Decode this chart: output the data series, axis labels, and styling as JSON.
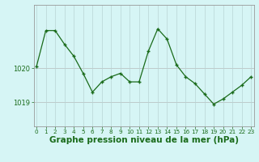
{
  "hours": [
    0,
    1,
    2,
    3,
    4,
    5,
    6,
    7,
    8,
    9,
    10,
    11,
    12,
    13,
    14,
    15,
    16,
    17,
    18,
    19,
    20,
    21,
    22,
    23
  ],
  "pressure": [
    1020.05,
    1021.1,
    1021.1,
    1020.7,
    1020.35,
    1019.85,
    1019.3,
    1019.6,
    1019.75,
    1019.85,
    1019.6,
    1019.6,
    1020.5,
    1021.15,
    1020.85,
    1020.1,
    1019.75,
    1019.55,
    1019.25,
    1018.95,
    1019.1,
    1019.3,
    1019.5,
    1019.75
  ],
  "line_color": "#1a6b1a",
  "marker_color": "#1a6b1a",
  "bg_color": "#d6f5f5",
  "grid_color": "#b8d4d4",
  "label_color": "#1a6b1a",
  "xlabel": "Graphe pression niveau de la mer (hPa)",
  "ytick_labels": [
    "1019",
    "1020"
  ],
  "ytick_vals": [
    1019.0,
    1020.0
  ],
  "ylim": [
    1018.3,
    1021.85
  ],
  "xlim": [
    -0.3,
    23.3
  ],
  "xlabel_fontsize": 7.5,
  "xtick_fontsize": 5.2,
  "ytick_fontsize": 6.0
}
